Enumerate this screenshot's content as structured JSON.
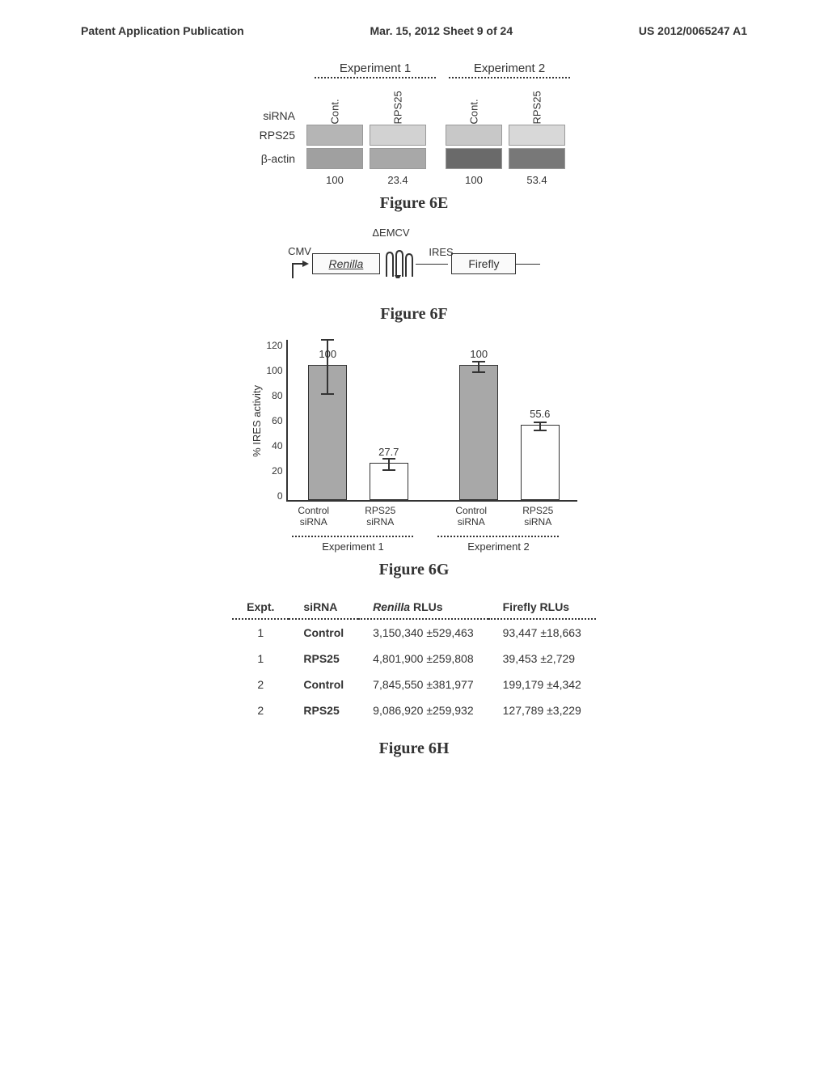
{
  "header": {
    "left": "Patent Application Publication",
    "center": "Mar. 15, 2012  Sheet 9 of 24",
    "right": "US 2012/0065247 A1"
  },
  "fig6e": {
    "caption": "Figure 6E",
    "exp1": "Experiment 1",
    "exp2": "Experiment 2",
    "sirna_label": "siRNA",
    "lane_cont": "Cont.",
    "lane_rps25": "RPS25",
    "row_rps25": "RPS25",
    "row_bactin": "β-actin",
    "values": [
      "100",
      "23.4",
      "100",
      "53.4"
    ],
    "band_colors": {
      "rps25_exp1_cont": "#b5b5b5",
      "rps25_exp1_rps25": "#d2d2d2",
      "rps25_exp2_cont": "#c8c8c8",
      "rps25_exp2_rps25": "#d8d8d8",
      "bactin_exp1_cont": "#a0a0a0",
      "bactin_exp1_rps25": "#a8a8a8",
      "bactin_exp2_cont": "#6a6a6a",
      "bactin_exp2_rps25": "#787878"
    }
  },
  "fig6f": {
    "caption": "Figure 6F",
    "promoter": "CMV",
    "renilla": "Renilla",
    "emcv": "ΔEMCV",
    "ires": "IRES",
    "firefly": "Firefly"
  },
  "fig6g": {
    "caption": "Figure 6G",
    "y_label": "% IRES activity",
    "y_ticks": [
      "120",
      "100",
      "80",
      "60",
      "40",
      "20",
      "0"
    ],
    "y_max": 120,
    "bars": [
      {
        "label": "100",
        "value": 100,
        "err": 20,
        "fill": "#a8a8a8",
        "name": "exp1-control"
      },
      {
        "label": "27.7",
        "value": 27.7,
        "err": 4,
        "fill": "#ffffff",
        "name": "exp1-rps25"
      },
      {
        "label": "100",
        "value": 100,
        "err": 4,
        "fill": "#a8a8a8",
        "name": "exp2-control"
      },
      {
        "label": "55.6",
        "value": 55.6,
        "err": 3,
        "fill": "#ffffff",
        "name": "exp2-rps25"
      }
    ],
    "x_labels": [
      {
        "top": "Control",
        "bottom": "siRNA"
      },
      {
        "top": "RPS25",
        "bottom": "siRNA"
      },
      {
        "top": "Control",
        "bottom": "siRNA"
      },
      {
        "top": "RPS25",
        "bottom": "siRNA"
      }
    ],
    "exp_labels": [
      "Experiment 1",
      "Experiment 2"
    ]
  },
  "fig6h": {
    "caption": "Figure 6H",
    "columns": [
      "Expt.",
      "siRNA",
      "Renilla RLUs",
      "Firefly RLUs"
    ],
    "rows": [
      [
        "1",
        "Control",
        "3,150,340 ±529,463",
        "93,447 ±18,663"
      ],
      [
        "1",
        "RPS25",
        "4,801,900 ±259,808",
        "39,453 ±2,729"
      ],
      [
        "2",
        "Control",
        "7,845,550 ±381,977",
        "199,179 ±4,342"
      ],
      [
        "2",
        "RPS25",
        "9,086,920 ±259,932",
        "127,789 ±3,229"
      ]
    ]
  }
}
